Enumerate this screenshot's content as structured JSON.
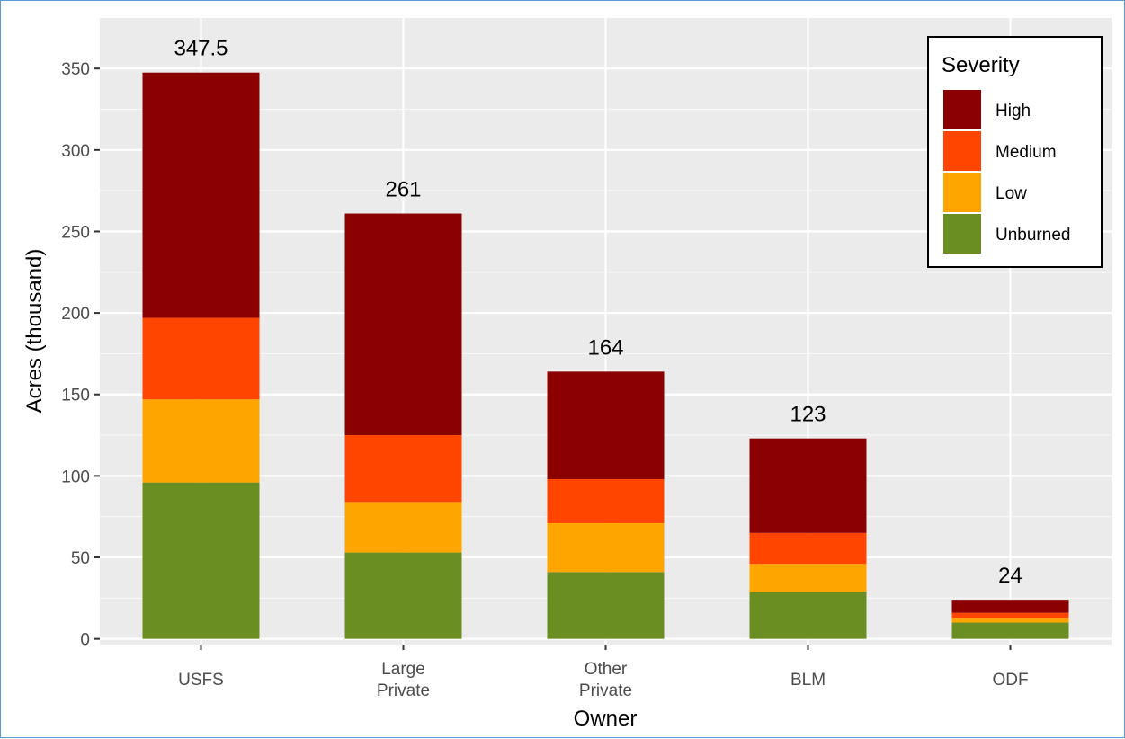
{
  "chart_data": {
    "type": "bar",
    "stacked": true,
    "title": "",
    "xlabel": "Owner",
    "ylabel": "Acres (thousand)",
    "ylim": [
      -3.5,
      381
    ],
    "yticks": [
      0,
      50,
      100,
      150,
      200,
      250,
      300,
      350
    ],
    "grid": true,
    "legend_position": "top-right",
    "legend_title": "Severity",
    "categories": [
      [
        "USFS"
      ],
      [
        "Large",
        "Private"
      ],
      [
        "Other",
        "Private"
      ],
      [
        "BLM"
      ],
      [
        "ODF"
      ]
    ],
    "totals": [
      "347.5",
      "261",
      "164",
      "123",
      "24"
    ],
    "series": [
      {
        "name": "Unburned",
        "color": "#6b8e23",
        "values": [
          96,
          53,
          41,
          29,
          10
        ]
      },
      {
        "name": "Low",
        "color": "#ffa500",
        "values": [
          51,
          31,
          30,
          17,
          3
        ]
      },
      {
        "name": "Medium",
        "color": "#ff4500",
        "values": [
          50,
          41,
          27,
          19,
          3
        ]
      },
      {
        "name": "High",
        "color": "#8b0000",
        "values": [
          150.5,
          136,
          66,
          58,
          8
        ]
      }
    ],
    "legend_order": [
      "High",
      "Medium",
      "Low",
      "Unburned"
    ]
  }
}
